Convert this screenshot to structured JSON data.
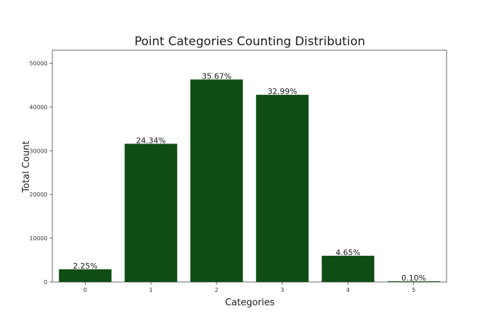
{
  "chart_data": {
    "type": "bar",
    "title": "Point Categories Counting Distribution",
    "xlabel": "Categories",
    "ylabel": "Total Count",
    "categories": [
      "0",
      "1",
      "2",
      "3",
      "4",
      "5"
    ],
    "values": [
      2900,
      31600,
      46300,
      42800,
      6000,
      130
    ],
    "data_labels": [
      "2.25%",
      "24.34%",
      "35.67%",
      "32.99%",
      "4.65%",
      "0.10%"
    ],
    "yticks": [
      "0",
      "10000",
      "20000",
      "30000",
      "40000",
      "50000"
    ],
    "ylim": [
      0,
      53000
    ],
    "bar_color": "#0f4d14",
    "grid": false,
    "legend": false
  }
}
